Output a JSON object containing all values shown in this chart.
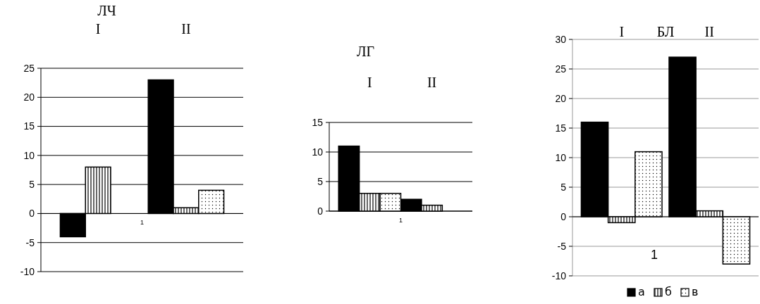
{
  "chart_data": [
    {
      "type": "bar",
      "title": "ЛЧ",
      "categories": [
        "I",
        "II"
      ],
      "series": [
        {
          "color": "#000000",
          "values": [
            -4,
            23
          ]
        },
        {
          "color": "#000000",
          "values": [
            8,
            1
          ]
        },
        {
          "color": "#000000",
          "values": [
            0,
            4
          ]
        }
      ],
      "ylim": [
        -10,
        25
      ],
      "yticks": [
        -10,
        -5,
        0,
        5,
        10,
        15,
        20,
        25
      ],
      "grid": "y",
      "legend": false,
      "annotations": [
        "1"
      ]
    },
    {
      "type": "bar",
      "title": "ЛГ",
      "categories": [
        "I",
        "II"
      ],
      "series": [
        {
          "color": "#000000",
          "values": [
            11,
            2
          ]
        },
        {
          "color": "#000000",
          "values": [
            3,
            1
          ]
        },
        {
          "color": "#000000",
          "values": [
            3,
            0
          ]
        }
      ],
      "ylim": [
        0,
        15
      ],
      "yticks": [
        0,
        5,
        10,
        15
      ],
      "grid": "y",
      "legend": false,
      "annotations": [
        "1"
      ]
    },
    {
      "type": "bar",
      "title": "БЛ",
      "categories": [
        "I",
        "II"
      ],
      "series": [
        {
          "name": "а",
          "color": "#000000",
          "values": [
            16,
            27
          ]
        },
        {
          "name": "б",
          "color": "#000000",
          "values": [
            -1,
            1
          ]
        },
        {
          "name": "в",
          "color": "#000000",
          "values": [
            11,
            -8
          ]
        }
      ],
      "ylim": [
        -10,
        30
      ],
      "yticks": [
        -10,
        -5,
        0,
        5,
        10,
        15,
        20,
        25,
        30
      ],
      "grid": "y",
      "legend": "bottom",
      "annotations": [
        "1"
      ]
    }
  ]
}
